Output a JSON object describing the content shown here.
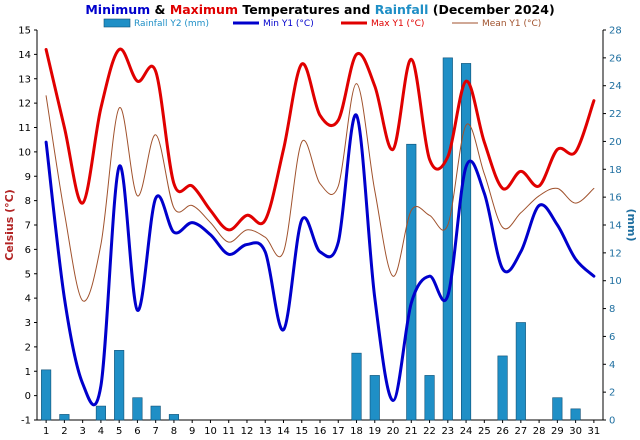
{
  "title": {
    "part1": "Minimum",
    "part2": " & ",
    "part3": "Maximum",
    "part4": " Temperatures and ",
    "part5": "Rainfall",
    "part6": " (December 2024)"
  },
  "colors": {
    "minimum": "#0000cc",
    "maximum": "#e00000",
    "rainfall": "#1f8fc6",
    "mean": "#a0522d",
    "text": "#000000",
    "left_axis": "#b22222",
    "right_axis": "#1f6fa0",
    "grid": "#e0e0e0"
  },
  "chart_data": {
    "type": "line",
    "title": "Minimum & Maximum Temperatures and Rainfall (December 2024)",
    "x": [
      1,
      2,
      3,
      4,
      5,
      6,
      7,
      8,
      9,
      10,
      11,
      12,
      13,
      14,
      15,
      16,
      17,
      18,
      19,
      20,
      21,
      22,
      23,
      24,
      25,
      26,
      27,
      28,
      29,
      30,
      31
    ],
    "xlabel": "",
    "ylabel": "Celsius (°C)",
    "ylim": [
      -1,
      15
    ],
    "y2label": "(mm)",
    "y2lim": [
      0,
      28
    ],
    "yticks": [
      -1,
      0,
      1,
      2,
      3,
      4,
      5,
      6,
      7,
      8,
      9,
      10,
      11,
      12,
      13,
      14,
      15
    ],
    "y2ticks": [
      0,
      2,
      4,
      6,
      8,
      10,
      12,
      14,
      16,
      18,
      20,
      22,
      24,
      26,
      28
    ],
    "grid": false,
    "legend_position": "top",
    "series": [
      {
        "name": "Rainfall Y2 (mm)",
        "type": "bar",
        "axis": "y2",
        "values": [
          3.6,
          0.4,
          0,
          1.0,
          5.0,
          1.6,
          1.0,
          0.4,
          0,
          0,
          0,
          0,
          0,
          0,
          0,
          0,
          0,
          4.8,
          3.2,
          0,
          19.8,
          3.2,
          26.0,
          25.6,
          0,
          4.6,
          7.0,
          0,
          1.6,
          0.8,
          0
        ]
      },
      {
        "name": "Min Y1 (°C)",
        "type": "line",
        "axis": "y1",
        "values": [
          10.4,
          4.0,
          0.5,
          0.4,
          9.4,
          3.5,
          8.1,
          6.7,
          7.1,
          6.6,
          5.8,
          6.2,
          5.9,
          2.7,
          7.2,
          5.9,
          6.3,
          11.5,
          4.0,
          -0.2,
          3.8,
          4.9,
          4.1,
          9.4,
          8.3,
          5.2,
          5.9,
          7.8,
          7.0,
          5.6,
          4.9
        ]
      },
      {
        "name": "Max Y1 (°C)",
        "type": "line",
        "axis": "y1",
        "values": [
          14.2,
          11.0,
          7.9,
          11.8,
          14.2,
          12.9,
          13.3,
          8.7,
          8.6,
          7.6,
          6.8,
          7.4,
          7.2,
          10.1,
          13.6,
          11.5,
          11.3,
          14.0,
          12.7,
          10.1,
          13.8,
          9.7,
          9.8,
          12.9,
          10.4,
          8.5,
          9.2,
          8.6,
          10.1,
          10.0,
          12.1
        ]
      },
      {
        "name": "Mean Y1 (°C)",
        "type": "line",
        "axis": "y1",
        "values": [
          12.3,
          7.5,
          3.9,
          6.2,
          11.8,
          8.2,
          10.7,
          7.7,
          7.8,
          7.1,
          6.3,
          6.8,
          6.5,
          5.9,
          10.4,
          8.7,
          8.6,
          12.8,
          8.4,
          4.9,
          7.6,
          7.4,
          7.0,
          11.1,
          9.1,
          6.9,
          7.5,
          8.2,
          8.5,
          7.9,
          8.5
        ]
      }
    ]
  }
}
